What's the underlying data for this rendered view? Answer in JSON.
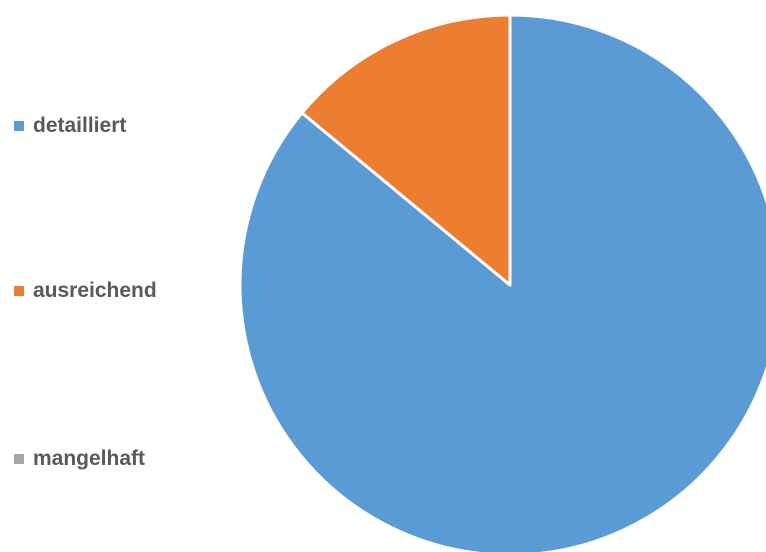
{
  "chart_data": {
    "type": "pie",
    "title": "",
    "legend_position": "left",
    "categories": [
      "detailliert",
      "ausreichend",
      "mangelhaft"
    ],
    "values": [
      86,
      14,
      0
    ],
    "colors": [
      "#5B9BD5",
      "#ED7D31",
      "#A5A5A5"
    ],
    "start_angle_deg": 0,
    "direction": "clockwise"
  }
}
